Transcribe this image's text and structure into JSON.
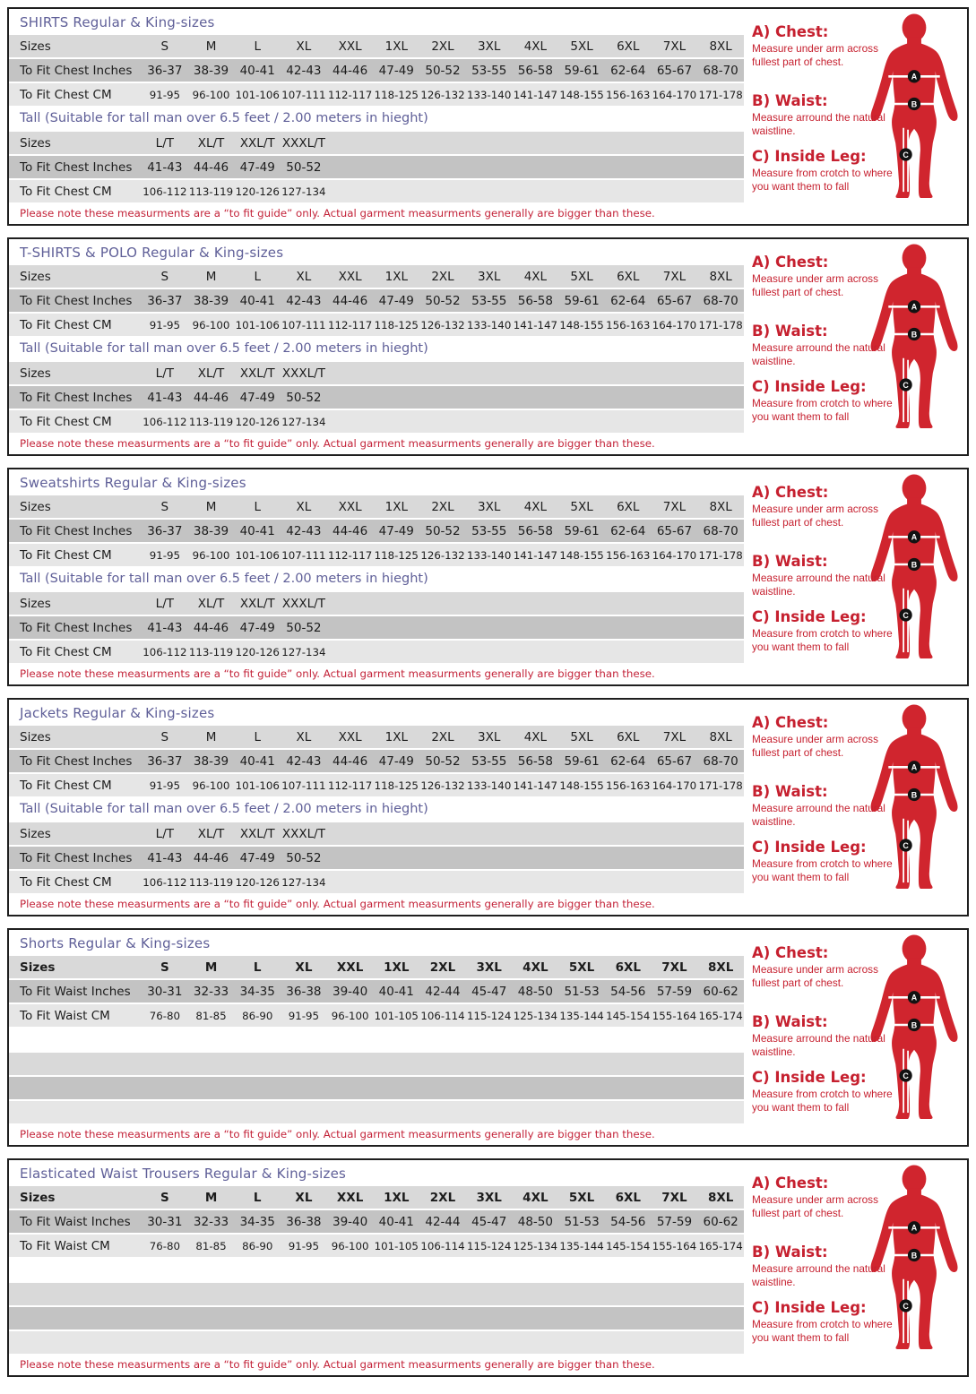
{
  "colors": {
    "panel_border": "#1f1f1f",
    "title_text": "#5f5f98",
    "row_sizes_bg": "#d9d9d9",
    "row_inches_bg": "#c3c3c3",
    "row_cm_bg": "#e6e6e6",
    "note_text": "#c32339",
    "guide_text": "#c6202f",
    "figure_red": "#d0252e"
  },
  "sizes_row_label": "Sizes",
  "size_columns": {
    "regular": [
      "S",
      "M",
      "L",
      "XL",
      "XXL",
      "1XL",
      "2XL",
      "3XL",
      "4XL",
      "5XL",
      "6XL",
      "7XL",
      "8XL"
    ],
    "tall": [
      "L/T",
      "XL/T",
      "XXL/T",
      "XXXL/T"
    ]
  },
  "row_labels": {
    "chest_inches": "To Fit Chest Inches",
    "chest_cm": "To Fit Chest CM",
    "waist_inches": "To Fit Waist Inches",
    "waist_cm": "To Fit Waist CM"
  },
  "measurements": {
    "chest_inches": [
      "36-37",
      "38-39",
      "40-41",
      "42-43",
      "44-46",
      "47-49",
      "50-52",
      "53-55",
      "56-58",
      "59-61",
      "62-64",
      "65-67",
      "68-70"
    ],
    "chest_cm": [
      "91-95",
      "96-100",
      "101-106",
      "107-111",
      "112-117",
      "118-125",
      "126-132",
      "133-140",
      "141-147",
      "148-155",
      "156-163",
      "164-170",
      "171-178"
    ],
    "tall_chest_inches": [
      "41-43",
      "44-46",
      "47-49",
      "50-52"
    ],
    "tall_chest_cm": [
      "106-112",
      "113-119",
      "120-126",
      "127-134"
    ],
    "waist_inches": [
      "30-31",
      "32-33",
      "34-35",
      "36-38",
      "39-40",
      "40-41",
      "42-44",
      "45-47",
      "48-50",
      "51-53",
      "54-56",
      "57-59",
      "60-62"
    ],
    "waist_cm": [
      "76-80",
      "81-85",
      "86-90",
      "91-95",
      "96-100",
      "101-105",
      "106-114",
      "115-124",
      "125-134",
      "135-144",
      "145-154",
      "155-164",
      "165-174"
    ]
  },
  "tall_heading": "Tall (Suitable for tall man over 6.5 feet / 2.00 meters in hieght)",
  "footer_note": "Please note these measurments are a “to fit guide” only. Actual garment measurments generally are bigger than these.",
  "panels": [
    {
      "title": "SHIRTS Regular & King-sizes",
      "layout": "chest"
    },
    {
      "title": "T-SHIRTS & POLO Regular & King-sizes",
      "layout": "chest"
    },
    {
      "title": "Sweatshirts Regular & King-sizes",
      "layout": "chest"
    },
    {
      "title": "Jackets Regular & King-sizes",
      "layout": "chest"
    },
    {
      "title": "Shorts Regular & King-sizes",
      "layout": "waist"
    },
    {
      "title": "Elasticated Waist Trousers Regular & King-sizes",
      "layout": "waist"
    }
  ],
  "measure_guide": {
    "items": [
      {
        "letter": "A",
        "heading": "A) Chest:",
        "description": "Measure under arm across fullest part of chest."
      },
      {
        "letter": "B",
        "heading": "B) Waist:",
        "description": "Measure arround the natural waistline."
      },
      {
        "letter": "C",
        "heading": "C) Inside Leg:",
        "description": "Measure from crotch to where you want them to fall"
      }
    ]
  }
}
